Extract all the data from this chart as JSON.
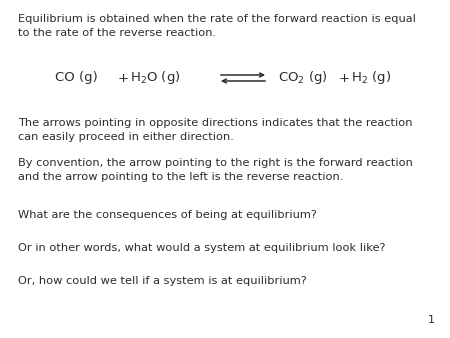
{
  "background_color": "#ffffff",
  "figsize": [
    4.5,
    3.38
  ],
  "dpi": 100,
  "text_color": "#2d2d2d",
  "font_family": "DejaVu Sans",
  "title_text": "Equilibrium is obtained when the rate of the forward reaction is equal\nto the rate of the reverse reaction.",
  "paragraph1_text": "The arrows pointing in opposite directions indicates that the reaction\ncan easily proceed in either direction.",
  "paragraph2_text": "By convention, the arrow pointing to the right is the forward reaction\nand the arrow pointing to the left is the reverse reaction.",
  "question1_text": "What are the consequences of being at equilibrium?",
  "question2_text": "Or in other words, what would a system at equilibrium look like?",
  "question3_text": "Or, how could we tell if a system is at equilibrium?",
  "page_number": "1",
  "fontsize_body": 8.2,
  "fontsize_eq": 9.5,
  "fontsize_page": 8.0
}
